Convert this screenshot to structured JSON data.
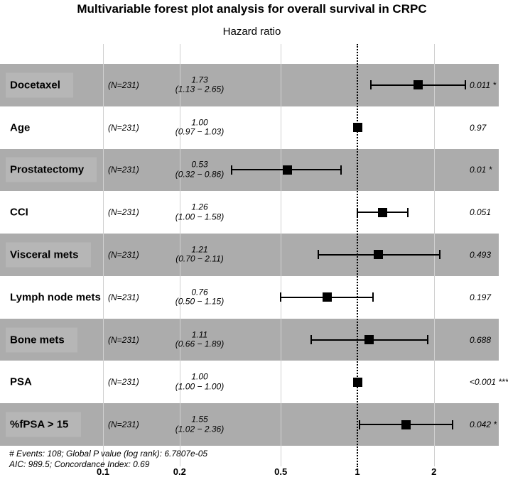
{
  "chart_data": {
    "type": "forest",
    "title": "Multivariable forest plot analysis for overall survival in CRPC",
    "subtitle": "Hazard ratio",
    "axis": {
      "scale": "log10",
      "ticks": [
        {
          "value": 0.1,
          "label": "0.1"
        },
        {
          "value": 0.2,
          "label": "0.2"
        },
        {
          "value": 0.5,
          "label": "0.5"
        },
        {
          "value": 1,
          "label": "1"
        },
        {
          "value": 2,
          "label": "2"
        }
      ],
      "reference_line": 1,
      "xlim": [
        0.07,
        3.6
      ]
    },
    "rows": [
      {
        "label": "Docetaxel",
        "n": "(N=231)",
        "hr_text": "1.73",
        "ci_text": "(1.13 − 2.65)",
        "hr": 1.73,
        "lo": 1.13,
        "hi": 2.65,
        "p": "0.011 *",
        "shaded": true
      },
      {
        "label": "Age",
        "n": "(N=231)",
        "hr_text": "1.00",
        "ci_text": "(0.97 − 1.03)",
        "hr": 1.0,
        "lo": 0.97,
        "hi": 1.03,
        "p": "0.97",
        "shaded": false
      },
      {
        "label": "Prostatectomy",
        "n": "(N=231)",
        "hr_text": "0.53",
        "ci_text": "(0.32 − 0.86)",
        "hr": 0.53,
        "lo": 0.32,
        "hi": 0.86,
        "p": "0.01 *",
        "shaded": true
      },
      {
        "label": "CCI",
        "n": "(N=231)",
        "hr_text": "1.26",
        "ci_text": "(1.00 − 1.58)",
        "hr": 1.26,
        "lo": 1.0,
        "hi": 1.58,
        "p": "0.051",
        "shaded": false
      },
      {
        "label": "Visceral mets",
        "n": "(N=231)",
        "hr_text": "1.21",
        "ci_text": "(0.70 − 2.11)",
        "hr": 1.21,
        "lo": 0.7,
        "hi": 2.11,
        "p": "0.493",
        "shaded": true
      },
      {
        "label": "Lymph node mets",
        "n": "(N=231)",
        "hr_text": "0.76",
        "ci_text": "(0.50 − 1.15)",
        "hr": 0.76,
        "lo": 0.5,
        "hi": 1.15,
        "p": "0.197",
        "shaded": false
      },
      {
        "label": "Bone mets",
        "n": "(N=231)",
        "hr_text": "1.11",
        "ci_text": "(0.66 − 1.89)",
        "hr": 1.11,
        "lo": 0.66,
        "hi": 1.89,
        "p": "0.688",
        "shaded": true
      },
      {
        "label": "PSA",
        "n": "(N=231)",
        "hr_text": "1.00",
        "ci_text": "(1.00 − 1.00)",
        "hr": 1.0,
        "lo": 1.0,
        "hi": 1.0,
        "p": "<0.001 ***",
        "shaded": false
      },
      {
        "label": "%fPSA > 15",
        "n": "(N=231)",
        "hr_text": "1.55",
        "ci_text": "(1.02 − 2.36)",
        "hr": 1.55,
        "lo": 1.02,
        "hi": 2.36,
        "p": "0.042 *",
        "shaded": true
      }
    ],
    "footnotes": [
      "# Events: 108; Global P value (log rank): 6.7807e-05",
      "AIC: 989.5; Concordance Index: 0.69"
    ],
    "legend_position": "none",
    "grid": true
  },
  "colors": {
    "band": "#ACACAC",
    "gridline": "#D0D0D0",
    "marker": "#000000",
    "reference_line": "#000000",
    "text": "#000000"
  }
}
